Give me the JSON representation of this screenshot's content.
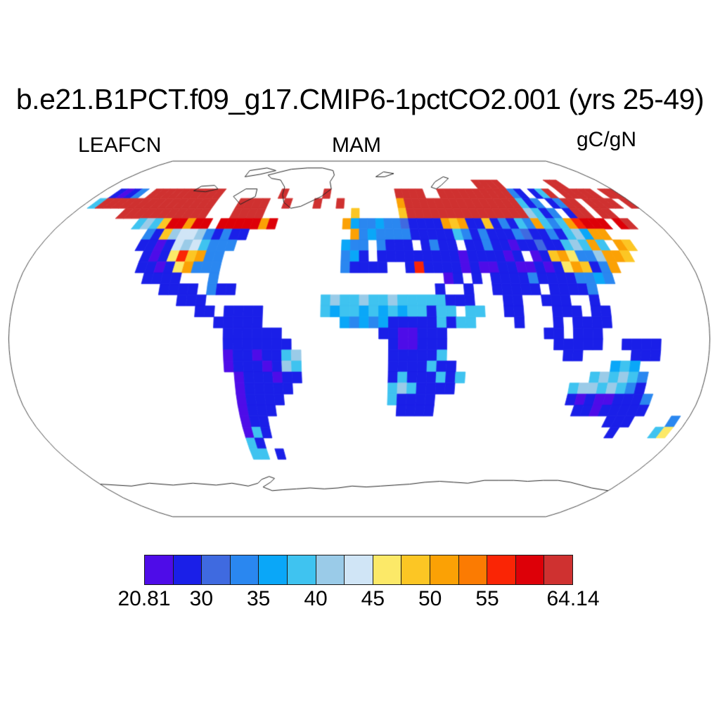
{
  "title": "b.e21.B1PCT.f09_g17.CMIP6-1pctCO2.001 (yrs 25-49)",
  "subtitle": {
    "left": "LEAFCN",
    "center": "MAM",
    "right": "gC/gN"
  },
  "chart_data": {
    "type": "heatmap",
    "title": "b.e21.B1PCT.f09_g17.CMIP6-1pctCO2.001 (yrs 25-49)",
    "variable": "LEAFCN",
    "season": "MAM",
    "units": "gC/gN",
    "projection": "Robinson",
    "value_min": 20.81,
    "value_max": 64.14,
    "colorbar": {
      "tick_labels": [
        "20.81",
        "30",
        "35",
        "40",
        "45",
        "50",
        "55",
        "64.14"
      ],
      "tick_indices": [
        0,
        2,
        4,
        6,
        8,
        10,
        12,
        15
      ],
      "levels": [
        20.81,
        25,
        30,
        32.5,
        35,
        37.5,
        40,
        42.5,
        45,
        47.5,
        50,
        52.5,
        55,
        57.5,
        60,
        64.14
      ],
      "colors": [
        "#4e0ce8",
        "#1a1fe8",
        "#3f6ae0",
        "#2a87f0",
        "#0aa7f8",
        "#3fc3f0",
        "#9acbe8",
        "#d0e5f6",
        "#fce968",
        "#fcc624",
        "#fba105",
        "#fb7b02",
        "#fa2505",
        "#dd0008",
        "#cf3130"
      ]
    },
    "palette_keys": "ABCDEFGHIJKLMNO",
    "grid": {
      "lon_start": -180,
      "dlon": 5,
      "lat_start": 90,
      "dlat": 5,
      "rows": [
        "",
        "",
        "",
        ".....................................................OOOO.......OO......",
        "..BABD.OOOOOOOOOO........O.....O.........OOOO..OOOOOOOOOODB.BFO.OOOOO.OO",
        ".FOOOOOOOOOOOOOOO...OOOO..O...O..O.......KOOOOOOOOOOOOOOOFBD.BDOO.OOOO.O",
        "......OOOOOOOOOOO...OOOO...........J.....JOOOOOOOOOOOOOOOGFBD.BOO.OO....",
        ".........FGFJNNKNN.NNNNNKN........KEDDEDDCBBBBKJKBBJBDBFDKFDFKMNNN.NO...",
        "...........DBJGHHGDBDBB............KDEDDDDBBBBBFDBDBBBDCBBDBFGEKK.......",
        "...........BBABHGHFDDD............EDD.DBBB.BDBB.BBDBBABBCBBFGFKF.KJ.....",
        "............BABIMJKDD.............DEB.BBBBBBBBBABBBBAB.ABJKIDDGKKJ......",
        "............BBABIKDDD.............DBBBB..BMBBBBABAABBAABABIKJBDK........",
        ".............BBBB...D........................AB.B.BBBBDBBBBDDED.........",
        "...............BBBB.DBB.....................B..B..BBBBB.BBBBD...........",
        ".................BBB............FGFFGFFGFFFFFBBB...BB..BBB..B...........",
        "...................BB.BBBB......FEFFEFEFEFFBFF.FF..BB...BBB.BB..........",
        ".....................BBBBB........EDEDEBBBBBFBFF....B...B.BBBB..........",
        "......................BBBBBB..........BBAABBB..........BB.BBB...........",
        "......................BBBBBBB..........BAABBB...........BBBBB..BBBB.....",
        "......................ABBABBFG.........BBBBBF............BB.....BBB.....",
        "......................ABBBABGF.........BBBBFBB................EFE.......",
        ".......................ABBBABB.........BFBBBFBF.............FGFGFD......",
        ".......................ABBBBB..........FGFBBBB............FGGFGFDB......",
        ".......................ABBBB...........FBBBB..............BABAABBBD.....",
        ".......................ABBB.............BBBB...............BBABBBBB.....",
        ".......................ABB.....................................BBB....D.",
        ".......................AFB......................................B....FI.",
        ".......................FB.......................................................",
        ".......................FF.B.....................................................",
        "",
        "",
        "",
        "",
        "",
        "",
        "",
        ""
      ]
    },
    "outlines": {
      "antarctica": [
        [
          -180,
          -67.5
        ],
        [
          -160,
          -68.5
        ],
        [
          -145,
          -67
        ],
        [
          -130,
          -68
        ],
        [
          -115,
          -67
        ],
        [
          -100,
          -68
        ],
        [
          -88,
          -67
        ],
        [
          -78,
          -68.5
        ],
        [
          -70,
          -67
        ],
        [
          -66,
          -65
        ],
        [
          -60,
          -63.5
        ],
        [
          -57,
          -64.5
        ],
        [
          -61,
          -66.5
        ],
        [
          -68,
          -69
        ],
        [
          -63,
          -71
        ],
        [
          -55,
          -70.5
        ],
        [
          -45,
          -70
        ],
        [
          -35,
          -69.5
        ],
        [
          -25,
          -70
        ],
        [
          -15,
          -69.5
        ],
        [
          -5,
          -68.5
        ],
        [
          5,
          -69
        ],
        [
          15,
          -68.5
        ],
        [
          25,
          -68
        ],
        [
          35,
          -67.5
        ],
        [
          45,
          -66.5
        ],
        [
          55,
          -66
        ],
        [
          65,
          -66.5
        ],
        [
          75,
          -67
        ],
        [
          85,
          -65.5
        ],
        [
          95,
          -65.5
        ],
        [
          105,
          -65.5
        ],
        [
          115,
          -66
        ],
        [
          125,
          -65.5
        ],
        [
          135,
          -65.5
        ],
        [
          145,
          -66.5
        ],
        [
          155,
          -68
        ],
        [
          165,
          -69.5
        ],
        [
          175,
          -70.5
        ],
        [
          180,
          -71
        ]
      ],
      "greenland": [
        [
          -73,
          78
        ],
        [
          -65,
          80
        ],
        [
          -58,
          82
        ],
        [
          -45,
          83
        ],
        [
          -32,
          83
        ],
        [
          -22,
          81
        ],
        [
          -20,
          78
        ],
        [
          -22,
          74
        ],
        [
          -20,
          70
        ],
        [
          -26,
          66
        ],
        [
          -38,
          61
        ],
        [
          -44,
          60
        ],
        [
          -50,
          63
        ],
        [
          -53,
          67
        ],
        [
          -54,
          71
        ],
        [
          -60,
          75
        ],
        [
          -68,
          76
        ],
        [
          -73,
          78
        ]
      ],
      "ellesmere": [
        [
          -90,
          77
        ],
        [
          -80,
          78.5
        ],
        [
          -70,
          81
        ],
        [
          -80,
          83
        ],
        [
          -92,
          81
        ],
        [
          -90,
          77
        ]
      ],
      "victoria": [
        [
          -117,
          69
        ],
        [
          -108,
          68.5
        ],
        [
          -101,
          70
        ],
        [
          -106,
          72
        ],
        [
          -115,
          71.5
        ],
        [
          -117,
          69
        ]
      ],
      "baffin": [
        [
          -78,
          62
        ],
        [
          -71,
          66
        ],
        [
          -73,
          70
        ],
        [
          -81,
          70
        ],
        [
          -86,
          66
        ],
        [
          -78,
          62
        ]
      ],
      "svalbard": [
        [
          13,
          77
        ],
        [
          20,
          80
        ],
        [
          28,
          79
        ],
        [
          20,
          77
        ],
        [
          13,
          77
        ]
      ],
      "novaya_zemlya": [
        [
          52,
          71
        ],
        [
          57,
          74
        ],
        [
          66,
          77
        ],
        [
          69,
          76
        ],
        [
          60,
          72
        ],
        [
          55,
          70
        ],
        [
          52,
          71
        ]
      ]
    }
  }
}
